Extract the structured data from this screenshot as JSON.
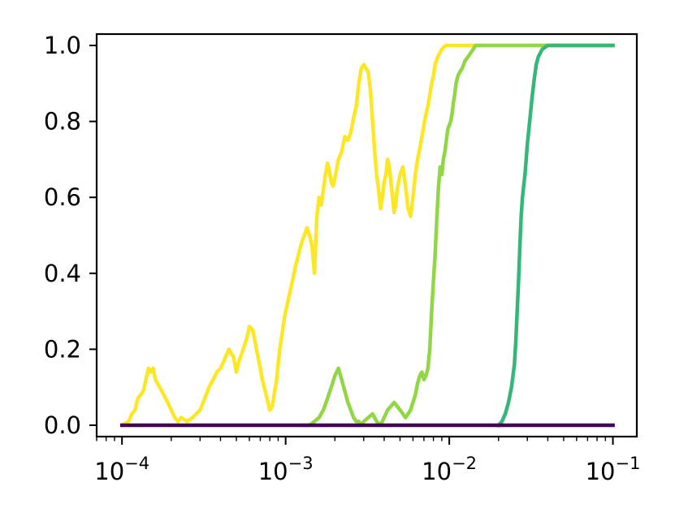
{
  "chart_data": {
    "type": "line",
    "title": "",
    "xlabel": "",
    "ylabel": "",
    "xscale": "log",
    "xlim": [
      7e-05,
      0.14
    ],
    "ylim": [
      -0.03,
      1.03
    ],
    "grid": false,
    "legend": "none",
    "x_tick_labels": [
      {
        "value": 0.0001,
        "base": "10",
        "exp": "−4"
      },
      {
        "value": 0.001,
        "base": "10",
        "exp": "−3"
      },
      {
        "value": 0.01,
        "base": "10",
        "exp": "−2"
      },
      {
        "value": 0.1,
        "base": "10",
        "exp": "−1"
      }
    ],
    "y_ticks": [
      0.0,
      0.2,
      0.4,
      0.6,
      0.8,
      1.0
    ],
    "y_tick_labels": [
      "0.0",
      "0.2",
      "0.4",
      "0.6",
      "0.8",
      "1.0"
    ],
    "series": [
      {
        "color": "#fde725",
        "x": [
          0.0001,
          0.00011,
          0.000115,
          0.00012,
          0.000125,
          0.00013,
          0.000135,
          0.00014,
          0.000145,
          0.00015,
          0.000155,
          0.00016,
          0.000165,
          0.00017,
          0.00018,
          0.00019,
          0.0002,
          0.00021,
          0.00022,
          0.00023,
          0.00025,
          0.00027,
          0.0003,
          0.00032,
          0.00034,
          0.00036,
          0.00038,
          0.0004,
          0.00042,
          0.00045,
          0.00048,
          0.0005,
          0.00052,
          0.00055,
          0.00058,
          0.0006,
          0.00063,
          0.00065,
          0.00067,
          0.0007,
          0.00072,
          0.00075,
          0.00078,
          0.0008,
          0.00083,
          0.00085,
          0.00088,
          0.0009,
          0.00092,
          0.00095,
          0.00098,
          0.001,
          0.00105,
          0.0011,
          0.00115,
          0.0012,
          0.00125,
          0.0013,
          0.00135,
          0.0014,
          0.00145,
          0.0015,
          0.00155,
          0.0016,
          0.00165,
          0.0017,
          0.00175,
          0.0018,
          0.00185,
          0.0019,
          0.00195,
          0.002,
          0.0021,
          0.0022,
          0.0023,
          0.0024,
          0.0025,
          0.0026,
          0.0027,
          0.0028,
          0.0029,
          0.003,
          0.0031,
          0.0032,
          0.0033,
          0.0034,
          0.0035,
          0.0036,
          0.0037,
          0.0038,
          0.0039,
          0.004,
          0.0041,
          0.0042,
          0.0043,
          0.0044,
          0.0045,
          0.0046,
          0.0047,
          0.0048,
          0.005,
          0.0052,
          0.0054,
          0.0056,
          0.0058,
          0.006,
          0.0062,
          0.0064,
          0.0066,
          0.0068,
          0.007,
          0.0072,
          0.0074,
          0.0076,
          0.0078,
          0.008,
          0.0082,
          0.0085,
          0.009,
          0.0095,
          0.01,
          0.0105,
          0.011,
          0.012,
          0.015,
          0.02,
          0.03,
          0.05,
          0.1
        ],
        "y": [
          0.0,
          0.01,
          0.03,
          0.04,
          0.07,
          0.08,
          0.09,
          0.12,
          0.15,
          0.14,
          0.15,
          0.12,
          0.11,
          0.1,
          0.08,
          0.06,
          0.04,
          0.02,
          0.01,
          0.02,
          0.01,
          0.02,
          0.04,
          0.07,
          0.1,
          0.12,
          0.14,
          0.15,
          0.17,
          0.2,
          0.18,
          0.14,
          0.17,
          0.2,
          0.23,
          0.26,
          0.25,
          0.22,
          0.19,
          0.15,
          0.12,
          0.09,
          0.06,
          0.04,
          0.05,
          0.08,
          0.12,
          0.16,
          0.2,
          0.24,
          0.28,
          0.3,
          0.34,
          0.38,
          0.42,
          0.45,
          0.48,
          0.5,
          0.52,
          0.5,
          0.47,
          0.4,
          0.55,
          0.6,
          0.58,
          0.62,
          0.66,
          0.69,
          0.67,
          0.64,
          0.63,
          0.65,
          0.7,
          0.72,
          0.76,
          0.75,
          0.77,
          0.81,
          0.84,
          0.9,
          0.94,
          0.95,
          0.94,
          0.93,
          0.88,
          0.8,
          0.72,
          0.66,
          0.62,
          0.57,
          0.6,
          0.64,
          0.66,
          0.7,
          0.68,
          0.64,
          0.6,
          0.56,
          0.58,
          0.62,
          0.66,
          0.68,
          0.63,
          0.57,
          0.55,
          0.6,
          0.66,
          0.7,
          0.73,
          0.76,
          0.79,
          0.82,
          0.84,
          0.87,
          0.9,
          0.92,
          0.95,
          0.97,
          0.99,
          1.0,
          1.0,
          1.0,
          1.0,
          1.0,
          1.0,
          1.0,
          1.0,
          1.0,
          1.0
        ]
      },
      {
        "color": "#90d743",
        "x": [
          0.0013,
          0.0014,
          0.0015,
          0.0016,
          0.0017,
          0.0018,
          0.0019,
          0.002,
          0.0021,
          0.0022,
          0.0023,
          0.0024,
          0.0025,
          0.0026,
          0.0027,
          0.0028,
          0.0029,
          0.003,
          0.0032,
          0.0034,
          0.0036,
          0.0038,
          0.004,
          0.0042,
          0.0044,
          0.0046,
          0.0048,
          0.005,
          0.0052,
          0.0054,
          0.0056,
          0.0058,
          0.006,
          0.0062,
          0.0064,
          0.0066,
          0.0068,
          0.007,
          0.0072,
          0.0074,
          0.0076,
          0.0078,
          0.008,
          0.0082,
          0.0084,
          0.0086,
          0.0088,
          0.009,
          0.0092,
          0.0094,
          0.0096,
          0.0098,
          0.01,
          0.0102,
          0.0104,
          0.0106,
          0.0108,
          0.011,
          0.0113,
          0.0116,
          0.012,
          0.0125,
          0.013,
          0.0135,
          0.014,
          0.0145,
          0.015,
          0.016,
          0.017,
          0.018,
          0.02,
          0.025,
          0.03,
          0.05,
          0.1
        ],
        "y": [
          0.0,
          0.0,
          0.01,
          0.02,
          0.04,
          0.07,
          0.1,
          0.13,
          0.15,
          0.12,
          0.09,
          0.06,
          0.04,
          0.02,
          0.01,
          0.01,
          0.0,
          0.01,
          0.02,
          0.03,
          0.01,
          0.0,
          0.02,
          0.04,
          0.05,
          0.06,
          0.05,
          0.04,
          0.03,
          0.02,
          0.03,
          0.04,
          0.06,
          0.08,
          0.11,
          0.13,
          0.14,
          0.12,
          0.13,
          0.15,
          0.2,
          0.3,
          0.38,
          0.45,
          0.55,
          0.63,
          0.68,
          0.66,
          0.7,
          0.72,
          0.75,
          0.78,
          0.79,
          0.8,
          0.82,
          0.85,
          0.87,
          0.9,
          0.92,
          0.93,
          0.94,
          0.96,
          0.97,
          0.98,
          0.99,
          1.0,
          1.0,
          1.0,
          1.0,
          1.0,
          1.0,
          1.0,
          1.0,
          1.0,
          1.0
        ]
      },
      {
        "color": "#35b779",
        "x": [
          0.02,
          0.021,
          0.022,
          0.023,
          0.024,
          0.025,
          0.0255,
          0.026,
          0.0265,
          0.027,
          0.0275,
          0.028,
          0.0285,
          0.029,
          0.0295,
          0.03,
          0.031,
          0.032,
          0.033,
          0.034,
          0.035,
          0.037,
          0.04,
          0.045,
          0.05,
          0.07,
          0.1
        ],
        "y": [
          0.0,
          0.01,
          0.03,
          0.06,
          0.1,
          0.16,
          0.22,
          0.3,
          0.38,
          0.47,
          0.55,
          0.6,
          0.63,
          0.66,
          0.7,
          0.74,
          0.8,
          0.86,
          0.91,
          0.95,
          0.97,
          0.99,
          1.0,
          1.0,
          1.0,
          1.0,
          1.0
        ]
      },
      {
        "color": "#440154",
        "x": [
          0.0001,
          0.1
        ],
        "y": [
          0.0,
          0.0
        ]
      }
    ]
  }
}
